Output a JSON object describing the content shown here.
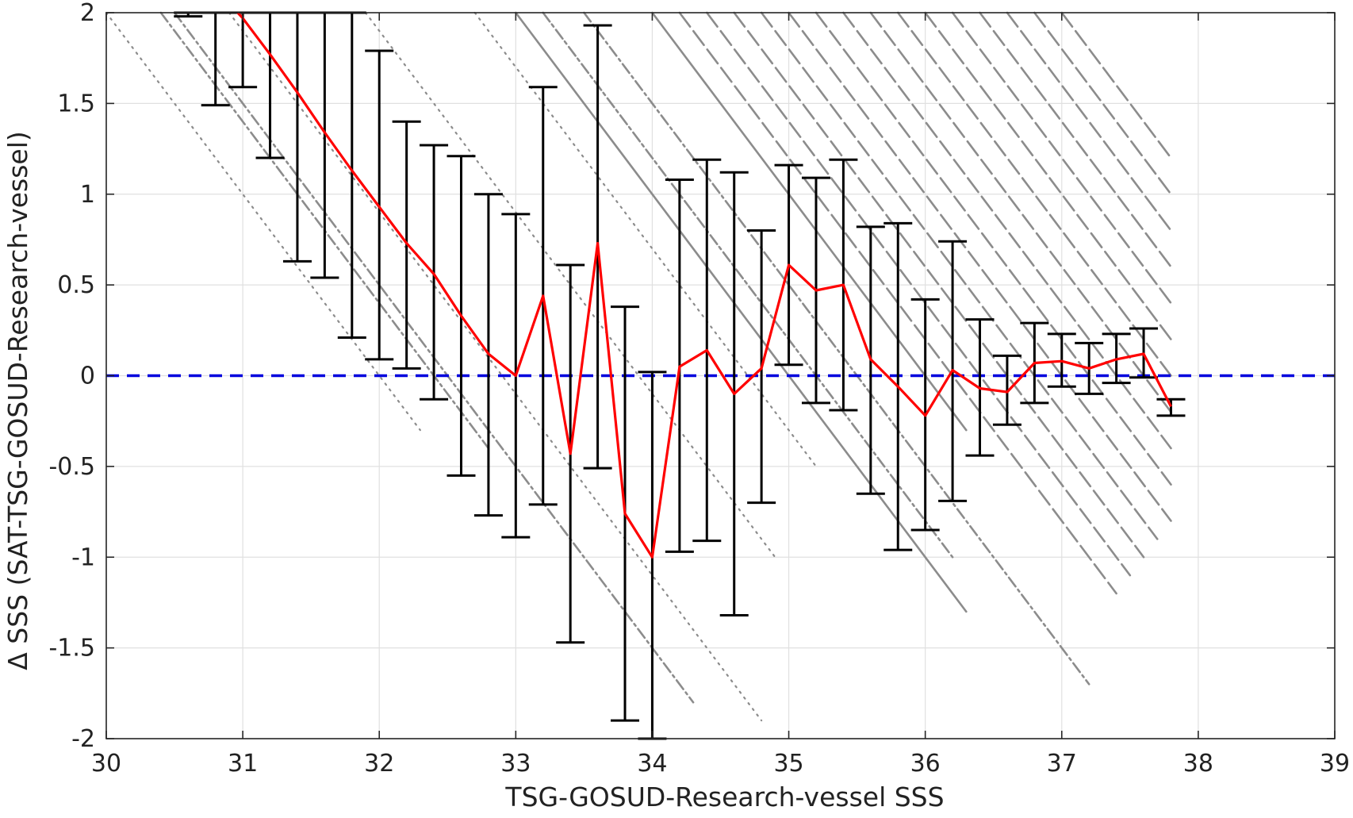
{
  "chart_data": {
    "type": "line",
    "title": "",
    "xlabel": "TSG-GOSUD-Research-vessel SSS",
    "ylabel": "Δ SSS (SAT-TSG-GOSUD-Research-vessel)",
    "xlim": [
      30,
      39
    ],
    "ylim": [
      -2,
      2
    ],
    "x_ticks": [
      "30",
      "31",
      "32",
      "33",
      "34",
      "35",
      "36",
      "37",
      "38",
      "39"
    ],
    "y_ticks": [
      "-2",
      "-1.5",
      "-1",
      "-0.5",
      "0",
      "0.5",
      "1",
      "1.5",
      "2"
    ],
    "grid": true,
    "colors": {
      "mean_line": "#ff0000",
      "error_bars": "#000000",
      "scatter": "#8c8c8c",
      "zero_line": "#0000dd",
      "grid": "#e0e0e0",
      "axes": "#262626"
    },
    "zero_reference": 0,
    "series": [
      {
        "x": [
          30.9,
          31.0,
          31.2,
          31.4,
          31.6,
          31.8,
          32.0,
          32.2,
          32.4,
          32.6,
          32.8,
          33.0,
          33.2,
          33.4,
          33.6,
          33.8,
          34.0,
          34.2,
          34.4,
          34.6,
          34.8,
          35.0,
          35.2,
          35.4,
          35.6,
          35.8,
          36.0,
          36.2,
          36.4,
          36.6,
          36.8,
          37.0,
          37.2,
          37.4,
          37.6,
          37.8
        ],
        "y": [
          2.05,
          1.97,
          1.77,
          1.56,
          1.34,
          1.13,
          0.93,
          0.73,
          0.56,
          0.33,
          0.12,
          0.0,
          0.44,
          -0.43,
          0.73,
          -0.76,
          -1.0,
          0.05,
          0.14,
          -0.1,
          0.04,
          0.61,
          0.47,
          0.5,
          0.09,
          -0.06,
          -0.22,
          0.03,
          -0.07,
          -0.09,
          0.07,
          0.08,
          0.04,
          0.09,
          0.12,
          -0.17
        ]
      }
    ],
    "error_bars": [
      {
        "x": 30.6,
        "low": 1.98,
        "high": 2.0
      },
      {
        "x": 30.8,
        "low": 1.49,
        "high": 2.0
      },
      {
        "x": 31.0,
        "low": 1.59,
        "high": 2.0
      },
      {
        "x": 31.2,
        "low": 1.2,
        "high": 2.0
      },
      {
        "x": 31.4,
        "low": 0.63,
        "high": 2.0
      },
      {
        "x": 31.6,
        "low": 0.54,
        "high": 2.0
      },
      {
        "x": 31.8,
        "low": 0.21,
        "high": 2.0
      },
      {
        "x": 32.0,
        "low": 0.09,
        "high": 1.79
      },
      {
        "x": 32.2,
        "low": 0.04,
        "high": 1.4
      },
      {
        "x": 32.4,
        "low": -0.13,
        "high": 1.27
      },
      {
        "x": 32.6,
        "low": -0.55,
        "high": 1.21
      },
      {
        "x": 32.8,
        "low": -0.77,
        "high": 1.0
      },
      {
        "x": 33.0,
        "low": -0.89,
        "high": 0.89
      },
      {
        "x": 33.2,
        "low": -0.71,
        "high": 1.59
      },
      {
        "x": 33.4,
        "low": -1.47,
        "high": 0.61
      },
      {
        "x": 33.6,
        "low": -0.51,
        "high": 1.93
      },
      {
        "x": 33.8,
        "low": -1.9,
        "high": 0.38
      },
      {
        "x": 34.0,
        "low": -2.0,
        "high": 0.02
      },
      {
        "x": 34.2,
        "low": -0.97,
        "high": 1.08
      },
      {
        "x": 34.4,
        "low": -0.91,
        "high": 1.19
      },
      {
        "x": 34.6,
        "low": -1.32,
        "high": 1.12
      },
      {
        "x": 34.8,
        "low": -0.7,
        "high": 0.8
      },
      {
        "x": 35.0,
        "low": 0.06,
        "high": 1.16
      },
      {
        "x": 35.2,
        "low": -0.15,
        "high": 1.09
      },
      {
        "x": 35.4,
        "low": -0.19,
        "high": 1.19
      },
      {
        "x": 35.6,
        "low": -0.65,
        "high": 0.82
      },
      {
        "x": 35.8,
        "low": -0.96,
        "high": 0.84
      },
      {
        "x": 36.0,
        "low": -0.85,
        "high": 0.42
      },
      {
        "x": 36.2,
        "low": -0.69,
        "high": 0.74
      },
      {
        "x": 36.4,
        "low": -0.44,
        "high": 0.31
      },
      {
        "x": 36.6,
        "low": -0.27,
        "high": 0.11
      },
      {
        "x": 36.8,
        "low": -0.15,
        "high": 0.29
      },
      {
        "x": 37.0,
        "low": -0.06,
        "high": 0.23
      },
      {
        "x": 37.2,
        "low": -0.1,
        "high": 0.18
      },
      {
        "x": 37.4,
        "low": -0.04,
        "high": 0.23
      },
      {
        "x": 37.6,
        "low": -0.01,
        "high": 0.26
      },
      {
        "x": 37.8,
        "low": -0.22,
        "high": -0.13
      }
    ],
    "scatter_streaks": [
      {
        "x0": 30.4,
        "x1": 32.8,
        "style": "dashdot"
      },
      {
        "x0": 30.5,
        "x1": 34.3,
        "style": "dashdot"
      },
      {
        "x0": 30.0,
        "x1": 32.3,
        "style": "dot"
      },
      {
        "x0": 30.9,
        "x1": 34.8,
        "style": "dot"
      },
      {
        "x0": 31.9,
        "x1": 34.9,
        "style": "dot"
      },
      {
        "x0": 32.7,
        "x1": 35.2,
        "style": "dot"
      },
      {
        "x0": 33.0,
        "x1": 35.9,
        "style": "dot"
      },
      {
        "x0": 33.2,
        "x1": 35.1,
        "style": "dot"
      },
      {
        "x0": 33.0,
        "x1": 36.3,
        "style": "solid"
      },
      {
        "x0": 34.0,
        "x1": 36.3,
        "style": "solid"
      },
      {
        "x0": 33.2,
        "x1": 36.2,
        "style": "dashdot"
      },
      {
        "x0": 33.5,
        "x1": 37.2,
        "style": "dashdot"
      },
      {
        "x0": 34.2,
        "x1": 37.4,
        "style": "dash"
      },
      {
        "x0": 34.4,
        "x1": 37.5,
        "style": "dash"
      },
      {
        "x0": 34.6,
        "x1": 37.6,
        "style": "dash"
      },
      {
        "x0": 34.8,
        "x1": 37.7,
        "style": "dash"
      },
      {
        "x0": 35.0,
        "x1": 37.8,
        "style": "dash"
      },
      {
        "x0": 35.2,
        "x1": 37.8,
        "style": "dash"
      },
      {
        "x0": 35.4,
        "x1": 37.8,
        "style": "dash"
      },
      {
        "x0": 35.6,
        "x1": 37.8,
        "style": "dash"
      },
      {
        "x0": 35.8,
        "x1": 37.8,
        "style": "dash"
      },
      {
        "x0": 36.0,
        "x1": 37.8,
        "style": "dash"
      },
      {
        "x0": 36.2,
        "x1": 37.8,
        "style": "dash"
      },
      {
        "x0": 36.4,
        "x1": 37.8,
        "style": "dash"
      },
      {
        "x0": 36.6,
        "x1": 37.8,
        "style": "dash"
      },
      {
        "x0": 36.8,
        "x1": 37.8,
        "style": "dash"
      },
      {
        "x0": 37.0,
        "x1": 37.8,
        "style": "dash"
      }
    ]
  }
}
